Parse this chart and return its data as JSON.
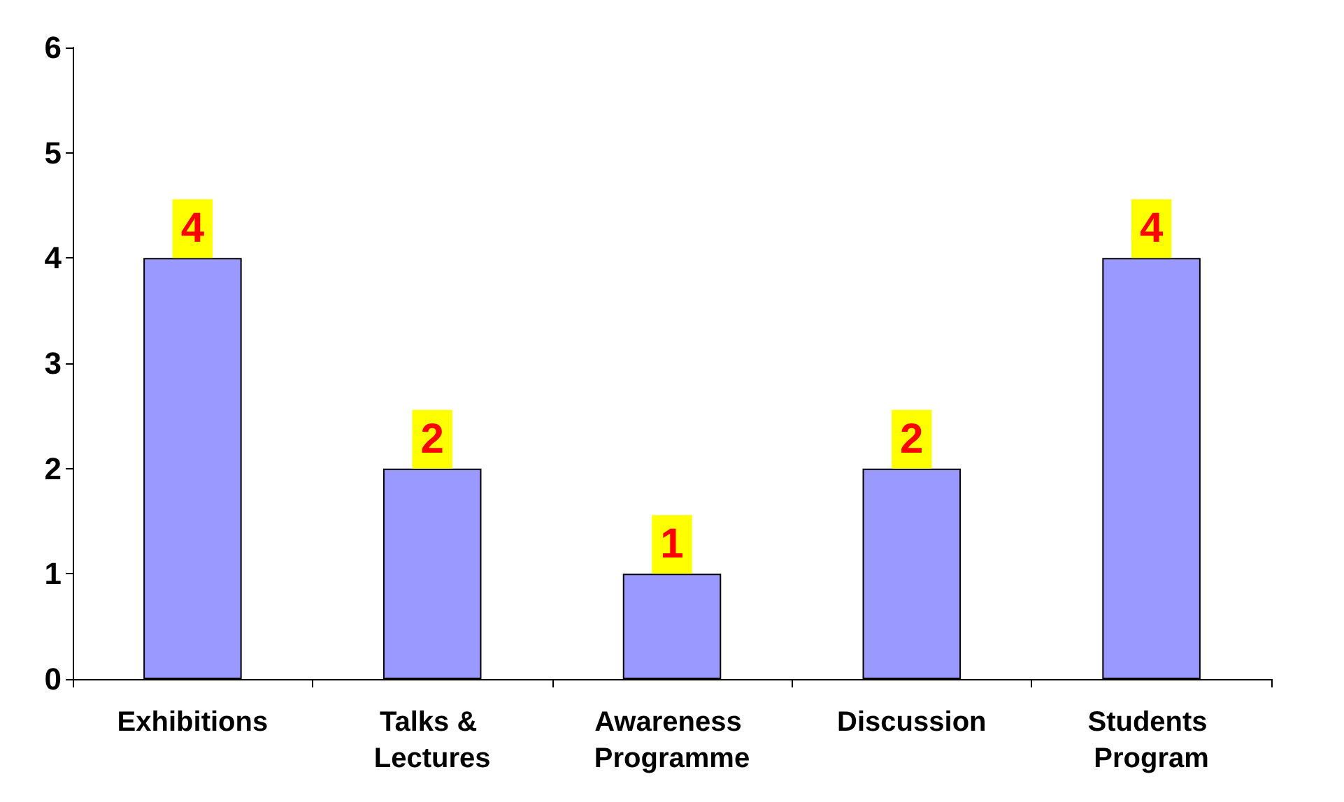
{
  "chart_data": {
    "type": "bar",
    "categories": [
      "Exhibitions",
      "Talks & Lectures",
      "Awareness Programme",
      "Discussion",
      "Students Program"
    ],
    "values": [
      4,
      2,
      1,
      2,
      4
    ],
    "color": "#9999ff",
    "ylim": [
      0,
      6
    ],
    "yticks": [
      0,
      1,
      2,
      3,
      4,
      5,
      6
    ],
    "grid": false,
    "data_labels": true
  }
}
